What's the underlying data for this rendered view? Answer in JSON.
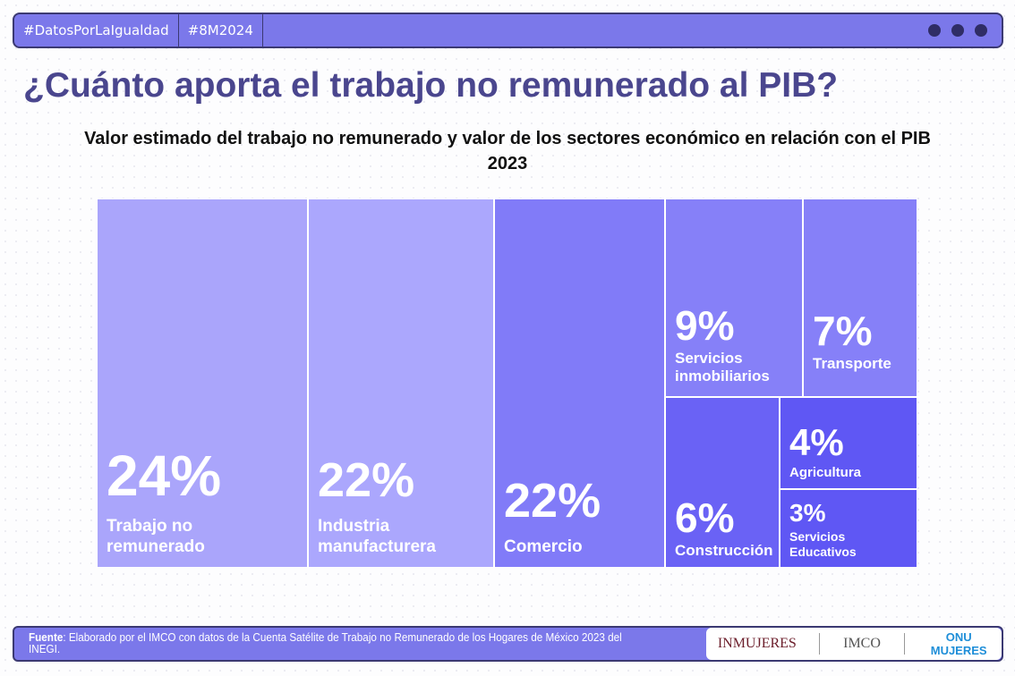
{
  "header": {
    "tags": [
      "#DatosPorLaIgualdad",
      "#8M2024"
    ]
  },
  "title": "¿Cuánto aporta el trabajo no remunerado al PIB?",
  "chart_data": {
    "type": "treemap",
    "title": "Valor estimado del trabajo no remunerado y valor de los sectores económico en relación con el PIB 2023",
    "items": [
      {
        "label": "Trabajo no remunerado",
        "value": 24,
        "pct": "24%",
        "color": "#aaa5fb"
      },
      {
        "label": "Industria manufacturera",
        "value": 22,
        "pct": "22%",
        "color": "#aba7fd"
      },
      {
        "label": "Comercio",
        "value": 22,
        "pct": "22%",
        "color": "#817bf8"
      },
      {
        "label": "Servicios inmobiliarios",
        "value": 9,
        "pct": "9%",
        "color": "#8680f8"
      },
      {
        "label": "Transporte",
        "value": 7,
        "pct": "7%",
        "color": "#8680f8"
      },
      {
        "label": "Construcción",
        "value": 6,
        "pct": "6%",
        "color": "#6a62f5"
      },
      {
        "label": "Agricultura",
        "value": 4,
        "pct": "4%",
        "color": "#5f57f4"
      },
      {
        "label": "Servicios Educativos",
        "value": 3,
        "pct": "3%",
        "color": "#5f57f4"
      }
    ]
  },
  "footer": {
    "source_label": "Fuente",
    "source_text": ": Elaborado por el IMCO con datos de la Cuenta Satélite de Trabajo no Remunerado de los Hogares de México 2023 del INEGI.",
    "logos": [
      "INMUJERES",
      "IMCO",
      "ONU MUJERES"
    ]
  }
}
